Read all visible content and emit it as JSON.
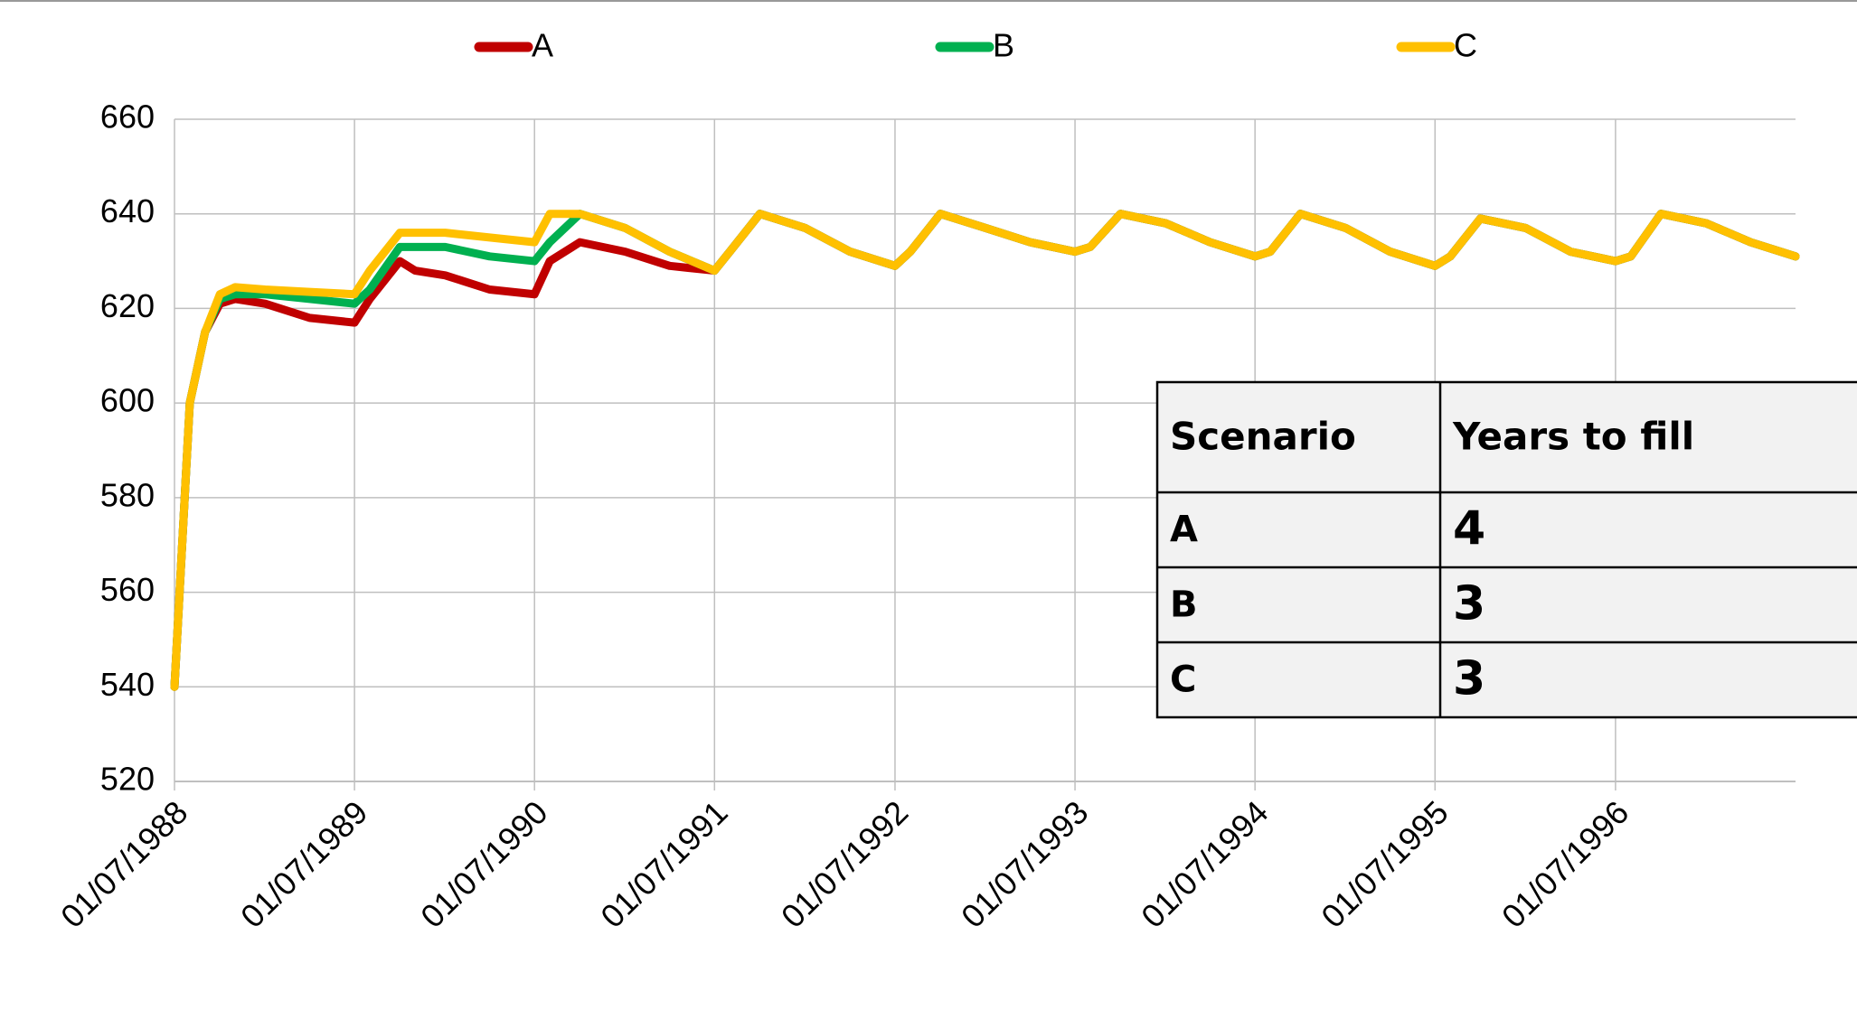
{
  "chart_data": {
    "type": "line",
    "x": [
      "1988-07-01",
      "1988-08-01",
      "1988-09-01",
      "1988-10-01",
      "1988-11-01",
      "1989-01-01",
      "1989-04-01",
      "1989-07-01",
      "1989-08-01",
      "1989-10-01",
      "1989-11-01",
      "1990-01-01",
      "1990-04-01",
      "1990-07-01",
      "1990-08-01",
      "1990-10-01",
      "1991-01-01",
      "1991-04-01",
      "1991-07-01",
      "1991-08-01",
      "1991-10-01",
      "1992-01-01",
      "1992-04-01",
      "1992-07-01",
      "1992-08-01",
      "1992-10-01",
      "1993-01-01",
      "1993-04-01",
      "1993-07-01",
      "1993-08-01",
      "1993-10-01",
      "1994-01-01",
      "1994-04-01",
      "1994-07-01",
      "1994-08-01",
      "1994-10-01",
      "1995-01-01",
      "1995-04-01",
      "1995-07-01",
      "1995-08-01",
      "1995-10-01",
      "1996-01-01",
      "1996-04-01",
      "1996-07-01",
      "1996-08-01",
      "1996-10-01",
      "1997-01-01",
      "1997-04-01",
      "1997-07-01"
    ],
    "series": [
      {
        "name": "A",
        "color": "#c00000",
        "values": [
          540,
          600,
          615,
          621,
          622,
          621,
          618,
          617,
          622,
          630,
          628,
          627,
          624,
          623,
          630,
          634,
          632,
          629,
          628,
          632,
          640,
          637,
          632,
          629,
          632,
          640,
          637,
          634,
          632,
          633,
          640,
          638,
          634,
          631,
          632,
          640,
          637,
          632,
          629,
          631,
          639,
          637,
          632,
          630,
          631,
          640,
          638,
          634,
          631
        ]
      },
      {
        "name": "B",
        "color": "#00b050",
        "values": [
          540,
          600,
          615,
          622,
          623,
          623,
          622,
          621,
          624,
          633,
          633,
          633,
          631,
          630,
          634,
          640,
          637,
          632,
          628,
          632,
          640,
          637,
          632,
          629,
          632,
          640,
          637,
          634,
          632,
          633,
          640,
          638,
          634,
          631,
          632,
          640,
          637,
          632,
          629,
          631,
          639,
          637,
          632,
          630,
          631,
          640,
          638,
          634,
          631
        ]
      },
      {
        "name": "C",
        "color": "#ffc000",
        "values": [
          540,
          600,
          615,
          623,
          624.5,
          624,
          623.5,
          623,
          628,
          636,
          636,
          636,
          635,
          634,
          640,
          640,
          637,
          632,
          628,
          632,
          640,
          637,
          632,
          629,
          632,
          640,
          637,
          634,
          632,
          633,
          640,
          638,
          634,
          631,
          632,
          640,
          637,
          632,
          629,
          631,
          639,
          637,
          632,
          630,
          631,
          640,
          638,
          634,
          631
        ]
      }
    ],
    "xlim": [
      "1988-07-01",
      "1997-07-01"
    ],
    "xticks": [
      {
        "value": "1988-07-01",
        "label": "01/07/1988"
      },
      {
        "value": "1989-07-01",
        "label": "01/07/1989"
      },
      {
        "value": "1990-07-01",
        "label": "01/07/1990"
      },
      {
        "value": "1991-07-01",
        "label": "01/07/1991"
      },
      {
        "value": "1992-07-01",
        "label": "01/07/1992"
      },
      {
        "value": "1993-07-01",
        "label": "01/07/1993"
      },
      {
        "value": "1994-07-01",
        "label": "01/07/1994"
      },
      {
        "value": "1995-07-01",
        "label": "01/07/1995"
      },
      {
        "value": "1996-07-01",
        "label": "01/07/1996"
      }
    ],
    "ylim": [
      520,
      660
    ],
    "yticks": [
      520,
      540,
      560,
      580,
      600,
      620,
      640,
      660
    ],
    "grid": true,
    "legend": "top"
  },
  "table": {
    "header": [
      "Scenario",
      "Years to fill"
    ],
    "rows": [
      [
        "A",
        4
      ],
      [
        "B",
        3
      ],
      [
        "C",
        3
      ]
    ]
  }
}
